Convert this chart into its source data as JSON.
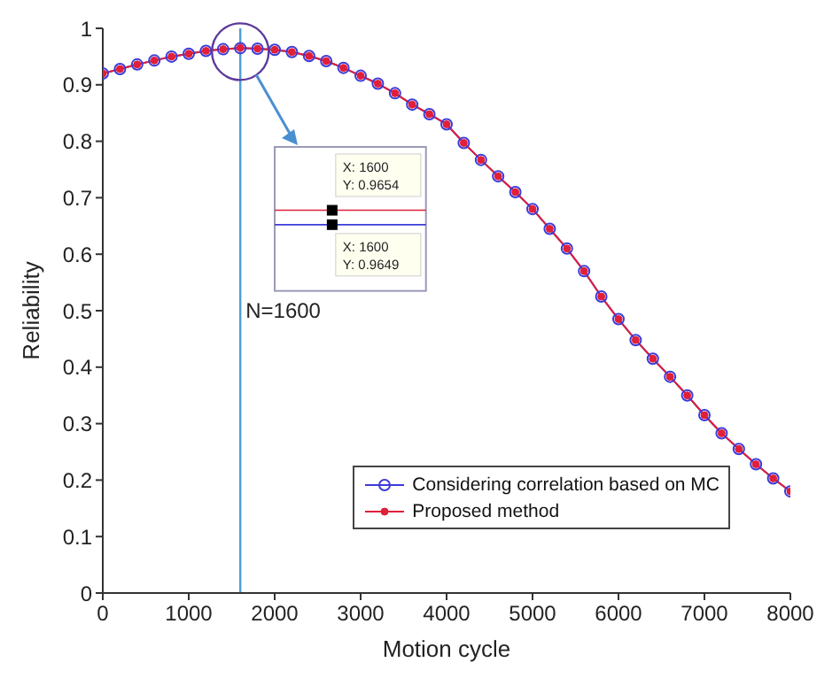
{
  "chart_data": {
    "type": "line",
    "xlabel": "Motion cycle",
    "ylabel": "Reliability",
    "x": [
      0,
      200,
      400,
      600,
      800,
      1000,
      1200,
      1400,
      1600,
      1800,
      2000,
      2200,
      2400,
      2600,
      2800,
      3000,
      3200,
      3400,
      3600,
      3800,
      4000,
      4200,
      4400,
      4600,
      4800,
      5000,
      5200,
      5400,
      5600,
      5800,
      6000,
      6200,
      6400,
      6600,
      6800,
      7000,
      7200,
      7400,
      7600,
      7800,
      8000
    ],
    "series": [
      {
        "name": "Considering correlation based on MC",
        "color": "#3b3bd9",
        "marker": "circle",
        "values": [
          0.92,
          0.928,
          0.936,
          0.943,
          0.95,
          0.955,
          0.96,
          0.963,
          0.9649,
          0.964,
          0.962,
          0.958,
          0.951,
          0.942,
          0.93,
          0.916,
          0.902,
          0.885,
          0.865,
          0.848,
          0.83,
          0.797,
          0.767,
          0.738,
          0.71,
          0.68,
          0.645,
          0.61,
          0.57,
          0.525,
          0.485,
          0.448,
          0.415,
          0.383,
          0.35,
          0.315,
          0.283,
          0.255,
          0.228,
          0.203,
          0.18
        ]
      },
      {
        "name": "Proposed method",
        "color": "#e0203a",
        "marker": "dot",
        "values": [
          0.92,
          0.928,
          0.936,
          0.943,
          0.95,
          0.955,
          0.96,
          0.963,
          0.9654,
          0.964,
          0.962,
          0.958,
          0.951,
          0.942,
          0.93,
          0.916,
          0.902,
          0.885,
          0.865,
          0.848,
          0.83,
          0.797,
          0.767,
          0.738,
          0.71,
          0.68,
          0.645,
          0.61,
          0.57,
          0.525,
          0.485,
          0.448,
          0.415,
          0.383,
          0.35,
          0.315,
          0.283,
          0.255,
          0.228,
          0.203,
          0.18
        ]
      }
    ],
    "xlim": [
      0,
      8000
    ],
    "xticks": [
      0,
      1000,
      2000,
      3000,
      4000,
      5000,
      6000,
      7000,
      8000
    ],
    "ylim": [
      0,
      1
    ],
    "yticks": [
      0,
      0.1,
      0.2,
      0.3,
      0.4,
      0.5,
      0.6,
      0.7,
      0.8,
      0.9,
      1
    ],
    "grid": false,
    "legend": "bottom right",
    "line_style": "solid",
    "ref_lines": [
      {
        "axis": "x",
        "value": 1600,
        "label": "N=1600",
        "color": "#4a9fd8"
      }
    ],
    "annotations": [
      "X: 1600\nY: 0.9654",
      "X: 1600\nY: 0.9649"
    ]
  }
}
